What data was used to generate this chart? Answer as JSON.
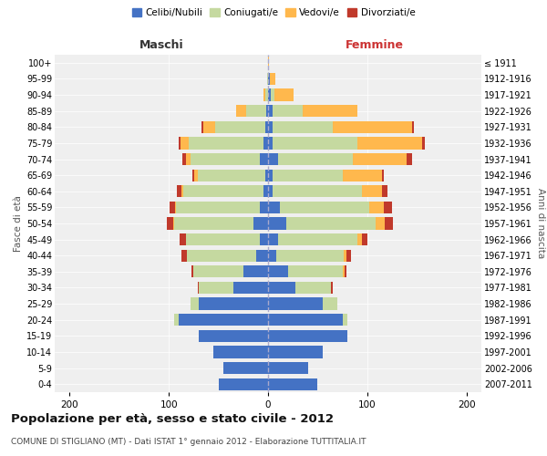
{
  "age_groups": [
    "0-4",
    "5-9",
    "10-14",
    "15-19",
    "20-24",
    "25-29",
    "30-34",
    "35-39",
    "40-44",
    "45-49",
    "50-54",
    "55-59",
    "60-64",
    "65-69",
    "70-74",
    "75-79",
    "80-84",
    "85-89",
    "90-94",
    "95-99",
    "100+"
  ],
  "birth_years": [
    "2007-2011",
    "2002-2006",
    "1997-2001",
    "1992-1996",
    "1987-1991",
    "1982-1986",
    "1977-1981",
    "1972-1976",
    "1967-1971",
    "1962-1966",
    "1957-1961",
    "1952-1956",
    "1947-1951",
    "1942-1946",
    "1937-1941",
    "1932-1936",
    "1927-1931",
    "1922-1926",
    "1917-1921",
    "1912-1916",
    "≤ 1911"
  ],
  "maschi": {
    "celibe": [
      50,
      45,
      55,
      70,
      90,
      70,
      35,
      25,
      12,
      8,
      15,
      8,
      5,
      3,
      8,
      5,
      3,
      2,
      0,
      0,
      0
    ],
    "coniugato": [
      0,
      0,
      0,
      0,
      5,
      8,
      35,
      50,
      70,
      75,
      80,
      85,
      80,
      68,
      70,
      75,
      50,
      20,
      3,
      1,
      0
    ],
    "vedovo": [
      0,
      0,
      0,
      0,
      0,
      0,
      0,
      0,
      0,
      0,
      1,
      1,
      2,
      3,
      5,
      8,
      12,
      10,
      2,
      0,
      0
    ],
    "divorziato": [
      0,
      0,
      0,
      0,
      0,
      0,
      1,
      2,
      5,
      6,
      6,
      5,
      5,
      2,
      3,
      2,
      2,
      0,
      0,
      0,
      0
    ]
  },
  "femmine": {
    "nubile": [
      50,
      40,
      55,
      80,
      75,
      55,
      28,
      20,
      8,
      10,
      18,
      12,
      5,
      5,
      10,
      5,
      5,
      5,
      3,
      2,
      0
    ],
    "coniugata": [
      0,
      0,
      0,
      0,
      5,
      15,
      35,
      55,
      68,
      80,
      90,
      90,
      90,
      70,
      75,
      85,
      60,
      30,
      3,
      0,
      0
    ],
    "vedova": [
      0,
      0,
      0,
      0,
      0,
      0,
      0,
      2,
      3,
      5,
      10,
      15,
      20,
      40,
      55,
      65,
      80,
      55,
      20,
      5,
      1
    ],
    "divorziata": [
      0,
      0,
      0,
      0,
      0,
      0,
      2,
      2,
      5,
      5,
      8,
      8,
      5,
      2,
      5,
      3,
      2,
      0,
      0,
      0,
      0
    ]
  },
  "colors": {
    "celibe": "#4472C4",
    "coniugato": "#c5d9a0",
    "vedovo": "#FFB84D",
    "divorziato": "#C0392B"
  },
  "xlim": 215,
  "title": "Popolazione per età, sesso e stato civile - 2012",
  "subtitle": "COMUNE DI STIGLIANO (MT) - Dati ISTAT 1° gennaio 2012 - Elaborazione TUTTITALIA.IT",
  "xlabel_left": "Maschi",
  "xlabel_right": "Femmine",
  "ylabel_left": "Fasce di età",
  "ylabel_right": "Anni di nascita",
  "legend_labels": [
    "Celibi/Nubili",
    "Coniugati/e",
    "Vedovi/e",
    "Divorziati/e"
  ],
  "background_color": "#ffffff",
  "bar_height": 0.75
}
